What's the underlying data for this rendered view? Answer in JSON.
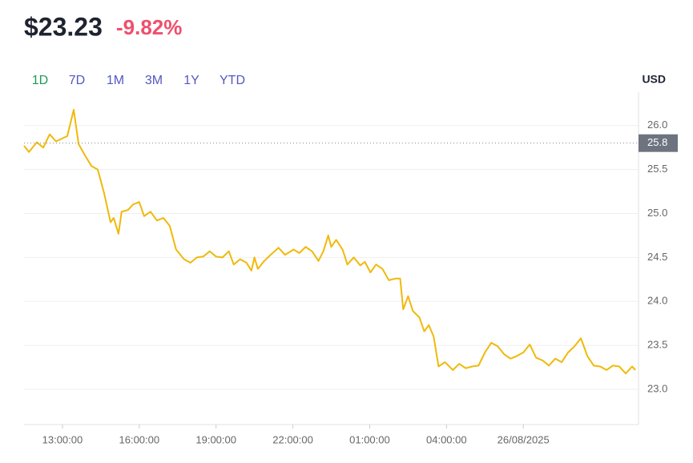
{
  "header": {
    "price": "$23.23",
    "change": "-9.82%",
    "change_color": "#ef4f6c"
  },
  "range_buttons": [
    {
      "label": "1D",
      "color": "#1d9c55"
    },
    {
      "label": "7D",
      "color": "#5457c2"
    },
    {
      "label": "1M",
      "color": "#5457c2"
    },
    {
      "label": "3M",
      "color": "#5457c2"
    },
    {
      "label": "1Y",
      "color": "#5457c2"
    },
    {
      "label": "YTD",
      "color": "#5457c2"
    }
  ],
  "chart_data": {
    "type": "line",
    "currency": "USD",
    "x": [
      11.5,
      11.69,
      12.0,
      12.25,
      12.5,
      12.75,
      13.19,
      13.44,
      13.63,
      13.88,
      14.13,
      14.38,
      14.63,
      14.88,
      15.0,
      15.19,
      15.31,
      15.56,
      15.75,
      16.0,
      16.19,
      16.44,
      16.69,
      16.94,
      17.19,
      17.44,
      17.75,
      18.0,
      18.25,
      18.5,
      18.75,
      19.0,
      19.25,
      19.5,
      19.69,
      19.94,
      20.19,
      20.38,
      20.5,
      20.63,
      20.88,
      21.13,
      21.44,
      21.69,
      22.03,
      22.25,
      22.5,
      22.75,
      23.0,
      23.19,
      23.38,
      23.5,
      23.69,
      23.94,
      24.13,
      24.38,
      24.63,
      24.81,
      25.03,
      25.25,
      25.5,
      25.75,
      26.0,
      26.19,
      26.31,
      26.5,
      26.69,
      26.94,
      27.13,
      27.31,
      27.5,
      27.69,
      27.94,
      28.25,
      28.5,
      28.75,
      29.0,
      29.25,
      29.5,
      29.75,
      30.0,
      30.25,
      30.5,
      30.75,
      31.0,
      31.25,
      31.5,
      31.75,
      32.0,
      32.25,
      32.5,
      32.75,
      33.0,
      33.25,
      33.5,
      33.75,
      34.0,
      34.25,
      34.5,
      34.75,
      35.0,
      35.25,
      35.38
    ],
    "series": [
      {
        "color": "#f0b90b",
        "values": [
          25.77,
          25.7,
          25.81,
          25.75,
          25.9,
          25.82,
          25.88,
          26.18,
          25.79,
          25.66,
          25.54,
          25.5,
          25.23,
          24.9,
          24.95,
          24.77,
          25.02,
          25.04,
          25.1,
          25.13,
          24.97,
          25.02,
          24.92,
          24.95,
          24.86,
          24.59,
          24.48,
          24.44,
          24.5,
          24.51,
          24.57,
          24.51,
          24.5,
          24.57,
          24.42,
          24.48,
          24.44,
          24.35,
          24.5,
          24.37,
          24.46,
          24.53,
          24.61,
          24.53,
          24.59,
          24.55,
          24.62,
          24.57,
          24.46,
          24.57,
          24.75,
          24.62,
          24.7,
          24.59,
          24.42,
          24.5,
          24.41,
          24.45,
          24.33,
          24.42,
          24.37,
          24.24,
          24.26,
          24.26,
          23.91,
          24.06,
          23.89,
          23.82,
          23.66,
          23.73,
          23.6,
          23.26,
          23.31,
          23.22,
          23.29,
          23.24,
          23.26,
          23.27,
          23.42,
          23.53,
          23.49,
          23.4,
          23.35,
          23.38,
          23.42,
          23.51,
          23.36,
          23.33,
          23.27,
          23.35,
          23.31,
          23.42,
          23.49,
          23.58,
          23.38,
          23.27,
          23.26,
          23.22,
          23.27,
          23.26,
          23.18,
          23.26,
          23.22
        ]
      }
    ],
    "xlim": [
      11.5,
      35.5
    ],
    "ylim": [
      22.6,
      26.38
    ],
    "xticks": [
      {
        "value": 13,
        "label": "13:00:00"
      },
      {
        "value": 16,
        "label": "16:00:00"
      },
      {
        "value": 19,
        "label": "19:00:00"
      },
      {
        "value": 22,
        "label": "22:00:00"
      },
      {
        "value": 25,
        "label": "01:00:00"
      },
      {
        "value": 28,
        "label": "04:00:00"
      },
      {
        "value": 31,
        "label": "26/08/2025"
      }
    ],
    "yticks": [
      {
        "value": 23,
        "label": "23.0"
      },
      {
        "value": 23.5,
        "label": "23.5"
      },
      {
        "value": 24,
        "label": "24.0"
      },
      {
        "value": 24.5,
        "label": "24.5"
      },
      {
        "value": 25,
        "label": "25.0"
      },
      {
        "value": 25.5,
        "label": "25.5"
      },
      {
        "value": 26,
        "label": "26.0"
      }
    ],
    "reference_line": 25.8,
    "grid": true
  }
}
